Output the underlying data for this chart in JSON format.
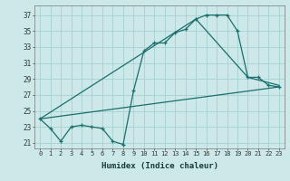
{
  "title": "",
  "xlabel": "Humidex (Indice chaleur)",
  "ylabel_ticks": [
    21,
    23,
    25,
    27,
    29,
    31,
    33,
    35,
    37
  ],
  "xlim": [
    -0.5,
    23.5
  ],
  "ylim": [
    20.3,
    38.2
  ],
  "bg_color": "#cce8e8",
  "grid_color": "#aad4d4",
  "line_color": "#1a6e6e",
  "line1_x": [
    0,
    1,
    2,
    3,
    4,
    5,
    6,
    7,
    8,
    9,
    10,
    11,
    12,
    13,
    14,
    15,
    16,
    17,
    18,
    19,
    20,
    21,
    22,
    23
  ],
  "line1_y": [
    24.0,
    22.8,
    21.2,
    23.0,
    23.2,
    23.0,
    22.8,
    21.2,
    20.8,
    27.5,
    32.5,
    33.5,
    33.5,
    34.8,
    35.2,
    36.5,
    37.0,
    37.0,
    37.0,
    35.0,
    29.2,
    29.2,
    28.2,
    28.0
  ],
  "line2_x": [
    0,
    23
  ],
  "line2_y": [
    24.0,
    28.0
  ],
  "line3_x": [
    0,
    15,
    20,
    23
  ],
  "line3_y": [
    24.0,
    36.5,
    29.2,
    28.2
  ]
}
